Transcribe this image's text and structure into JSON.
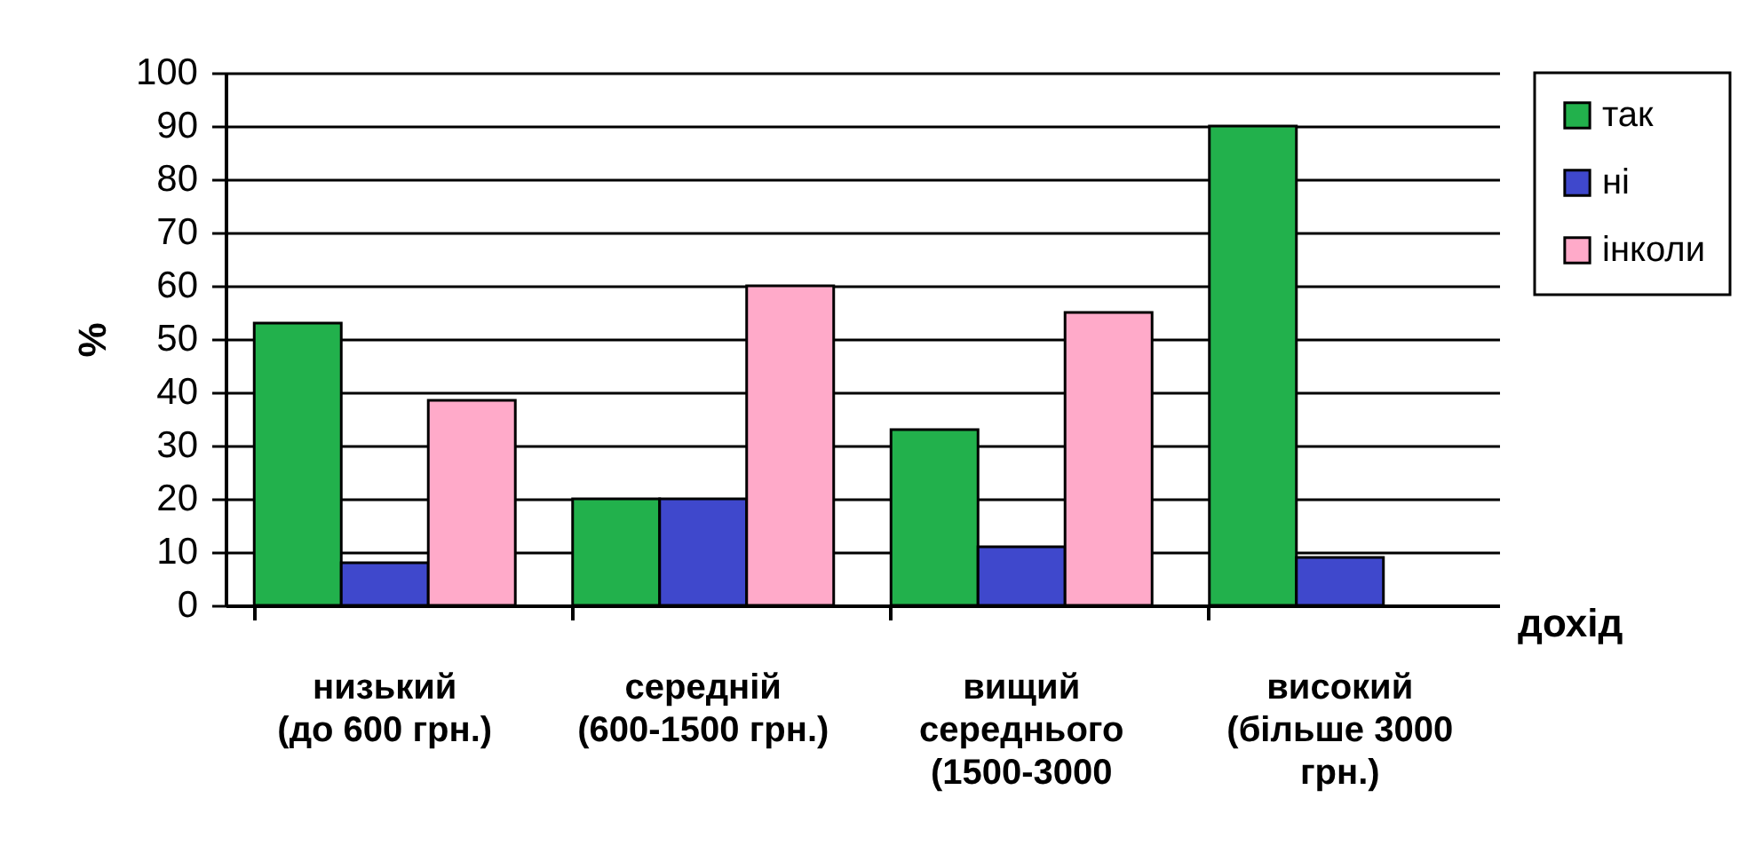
{
  "chart_data": {
    "type": "bar",
    "ylabel": "%",
    "xlabel": "дохід",
    "categories": [
      "низький\n(до 600 грн.)",
      "середній\n(600-1500 грн.)",
      "вищий\nсереднього\n(1500-3000",
      "високий\n(більше 3000\nгрн.)"
    ],
    "series": [
      {
        "name": "так",
        "color": "#22b14c",
        "values": [
          53,
          20,
          33,
          90
        ]
      },
      {
        "name": "ні",
        "color": "#3f48cc",
        "values": [
          8,
          20,
          11,
          9
        ]
      },
      {
        "name": "інколи",
        "color": "#ffaac9",
        "values": [
          38.5,
          60,
          55,
          null
        ]
      }
    ],
    "ylim": [
      0,
      100
    ],
    "yticks": [
      0,
      10,
      20,
      30,
      40,
      50,
      60,
      70,
      80,
      90,
      100
    ],
    "grid": "y",
    "legend": "right"
  }
}
